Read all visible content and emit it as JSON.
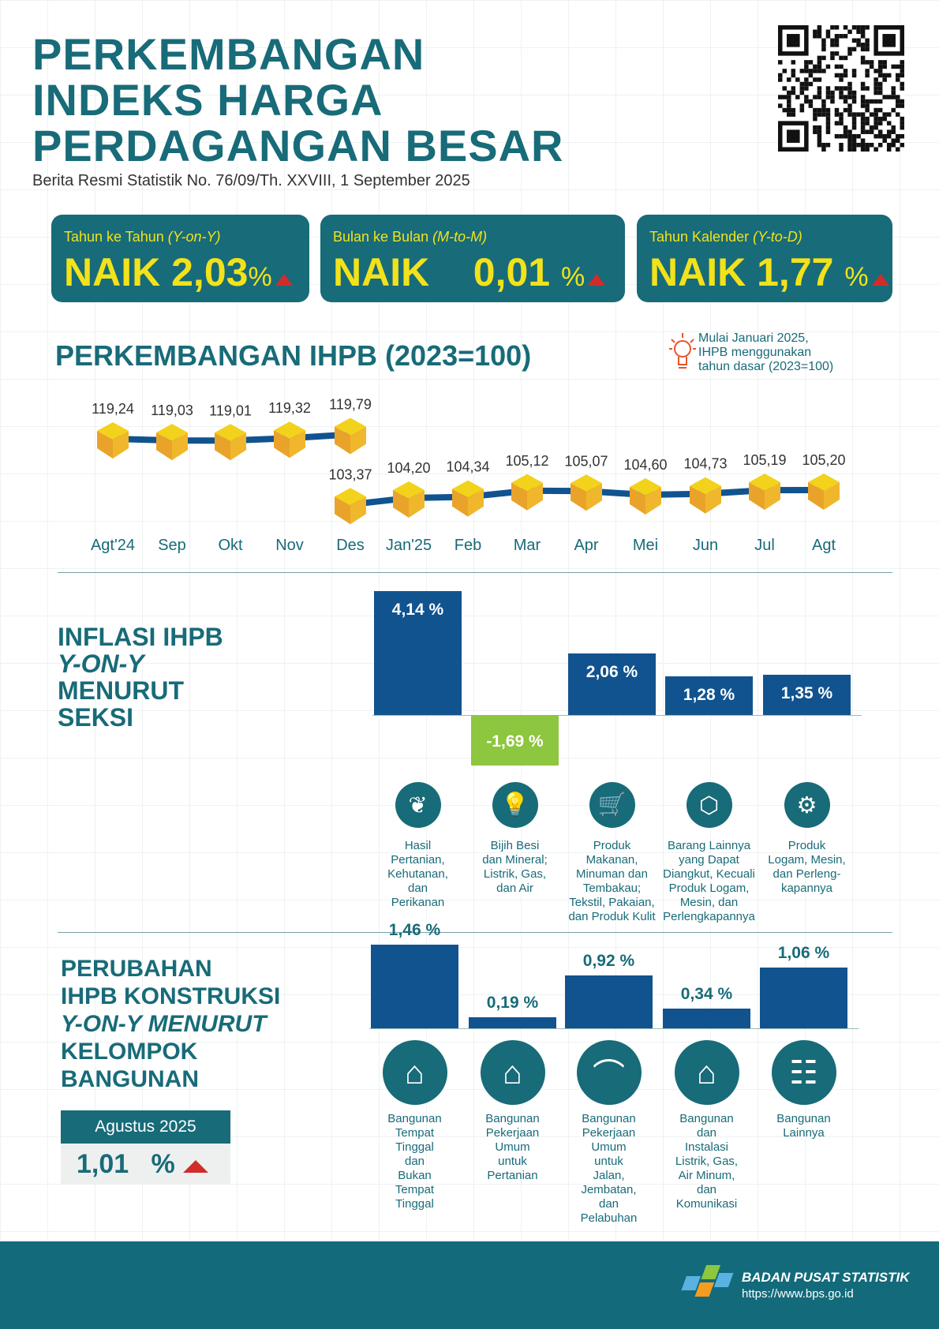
{
  "header": {
    "title_lines": [
      "PERKEMBANGAN",
      "INDEKS HARGA",
      "PERDAGANGAN BESAR"
    ],
    "subtitle": "Berita Resmi Statistik No. 76/09/Th. XXVIII, 1 September 2025"
  },
  "summary": [
    {
      "label": "Tahun ke Tahun ",
      "label_it": "(Y-on-Y)",
      "status": "NAIK",
      "value": "2,03",
      "unit": "%",
      "direction": "up"
    },
    {
      "label": "Bulan ke Bulan  ",
      "label_it": "(M-to-M)",
      "status": "NAIK",
      "value": "0,01",
      "unit": "%",
      "direction": "up"
    },
    {
      "label": "Tahun Kalender ",
      "label_it": "(Y-to-D)",
      "status": "NAIK",
      "value": "1,77",
      "unit": "%",
      "direction": "up"
    }
  ],
  "colors": {
    "teal": "#186b78",
    "yellow": "#f2e21b",
    "bar": "#11538f",
    "negative": "#8dc63f",
    "up": "#d12c2c",
    "note": "#e8542a",
    "footer": "#136a7a"
  },
  "chart_data": [
    {
      "type": "line",
      "title": "PERKEMBANGAN IHPB (2023=100)",
      "note": [
        "Mulai Januari 2025,",
        "IHPB menggunakan",
        "tahun dasar (2023=100)"
      ],
      "categories": [
        "Agt'24",
        "Sep",
        "Okt",
        "Nov",
        "Des",
        "Jan'25",
        "Feb",
        "Mar",
        "Apr",
        "Mei",
        "Jun",
        "Jul",
        "Agt"
      ],
      "series": [
        {
          "x": [
            "Agt'24",
            "Sep",
            "Okt",
            "Nov",
            "Des"
          ],
          "values": [
            119.24,
            119.03,
            119.01,
            119.32,
            119.79
          ],
          "labels": [
            "119,24",
            "119,03",
            "119,01",
            "119,32",
            "119,79"
          ]
        },
        {
          "x": [
            "Des",
            "Jan'25",
            "Feb",
            "Mar",
            "Apr",
            "Mei",
            "Jun",
            "Jul",
            "Agt"
          ],
          "values": [
            103.37,
            104.2,
            104.34,
            105.12,
            105.07,
            104.6,
            104.73,
            105.19,
            105.2
          ],
          "labels": [
            "103,37",
            "104,20",
            "104,34",
            "105,12",
            "105,07",
            "104,60",
            "104,73",
            "105,19",
            "105,20"
          ]
        }
      ],
      "marker": "cube-icon",
      "grid": false
    },
    {
      "type": "bar",
      "title_lines": [
        "INFLASI IHPB",
        "Y-ON-Y",
        "MENURUT",
        "SEKSI"
      ],
      "categories": [
        "Hasil Pertanian, Kehutanan, dan Perikanan",
        "Bijih Besi dan Mineral; Listrik, Gas, dan Air",
        "Produk Makanan, Minuman dan Tembakau; Tekstil, Pakaian, dan Produk Kulit",
        "Barang Lainnya yang Dapat Diangkut, Kecuali Produk Logam, Mesin, dan Perlengkapannya",
        "Produk Logam, Mesin, dan Perleng-kapannya"
      ],
      "category_lines": [
        [
          "Hasil",
          "Pertanian,",
          "Kehutanan,",
          "dan",
          "Perikanan"
        ],
        [
          "Bijih Besi",
          "dan Mineral;",
          "Listrik, Gas,",
          "dan Air"
        ],
        [
          "Produk",
          "Makanan,",
          "Minuman dan",
          "Tembakau;",
          "Tekstil, Pakaian,",
          "dan Produk Kulit"
        ],
        [
          "Barang Lainnya",
          "yang Dapat",
          "Diangkut, Kecuali",
          "Produk Logam,",
          "Mesin, dan",
          "Perlengkapannya"
        ],
        [
          "Produk",
          "Logam, Mesin,",
          "dan Perleng-",
          "kapannya"
        ]
      ],
      "icons": [
        "plant-icon",
        "lightbulb-icon",
        "shopping-cart-icon",
        "box-icon",
        "gears-icon"
      ],
      "values": [
        4.14,
        -1.69,
        2.06,
        1.28,
        1.35
      ],
      "labels": [
        "4,14 %",
        "-1,69 %",
        "2,06 %",
        "1,28 %",
        "1,35 %"
      ]
    },
    {
      "type": "bar",
      "title_lines": [
        "PERUBAHAN",
        "IHPB KONSTRUKSI",
        "Y-ON-Y MENURUT",
        "KELOMPOK",
        "BANGUNAN"
      ],
      "categories": [
        "Bangunan Tempat Tinggal dan Bukan Tempat Tinggal",
        "Bangunan Pekerjaan Umum untuk Pertanian",
        "Bangunan Pekerjaan Umum untuk Jalan, Jembatan, dan Pelabuhan",
        "Bangunan dan Instalasi Listrik, Gas, Air Minum, dan Komunikasi",
        "Bangunan Lainnya"
      ],
      "category_lines": [
        [
          "Bangunan",
          "Tempat",
          "Tinggal",
          "dan",
          "Bukan",
          "Tempat",
          "Tinggal"
        ],
        [
          "Bangunan",
          "Pekerjaan",
          "Umum",
          "untuk",
          "Pertanian"
        ],
        [
          "Bangunan",
          "Pekerjaan",
          "Umum",
          "untuk",
          "Jalan,",
          "Jembatan,",
          "dan",
          "Pelabuhan"
        ],
        [
          "Bangunan",
          "dan",
          "Instalasi",
          "Listrik, Gas,",
          "Air Minum,",
          "dan",
          "Komunikasi"
        ],
        [
          "Bangunan",
          "Lainnya"
        ]
      ],
      "icons": [
        "house-icon",
        "greenhouse-icon",
        "bridge-icon",
        "water-house-icon",
        "railway-icon"
      ],
      "values": [
        1.46,
        0.19,
        0.92,
        0.34,
        1.06
      ],
      "labels": [
        "1,46 %",
        "0,19 %",
        "0,92 %",
        "0,34 %",
        "1,06 %"
      ]
    }
  ],
  "construction_total": {
    "period": "Agustus 2025",
    "value": "1,01",
    "unit": "%",
    "direction": "up"
  },
  "footer": {
    "org": "BADAN PUSAT STATISTIK",
    "url": "https://www.bps.go.id"
  }
}
